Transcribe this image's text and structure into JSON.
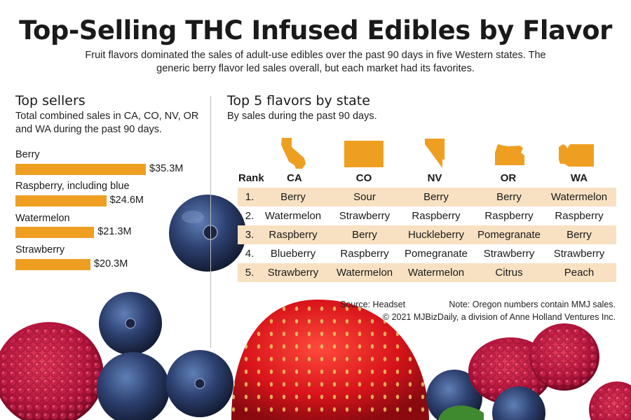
{
  "header": {
    "title": "Top-Selling THC Infused Edibles by Flavor",
    "subtitle_line1": "Fruit flavors dominated the sales of adult-use edibles over the past 90 days in five Western states. The",
    "subtitle_line2": "generic berry flavor led sales overall, but each market had its favorites."
  },
  "left_panel": {
    "heading": "Top sellers",
    "subheading_line1": "Total combined sales in CA, CO, NV, OR",
    "subheading_line2": "and WA during the past 90 days."
  },
  "right_panel": {
    "heading": "Top 5 flavors by state",
    "subheading": "By sales during the past 90 days."
  },
  "colors": {
    "bar": "#ee9f22",
    "shaded_row": "#f8e1c2",
    "state_shape": "#ee9f22"
  },
  "chart_data": [
    {
      "type": "bar",
      "orientation": "horizontal",
      "title": "Top sellers",
      "categories": [
        "Berry",
        "Raspberry, including blue",
        "Watermelon",
        "Strawberry"
      ],
      "values": [
        35.3,
        24.6,
        21.3,
        20.3
      ],
      "value_labels": [
        "$35.3M",
        "$24.6M",
        "$21.3M",
        "$20.3M"
      ],
      "unit": "$M"
    },
    {
      "type": "table",
      "title": "Top 5 flavors by state",
      "columns": [
        "Rank",
        "CA",
        "CO",
        "NV",
        "OR",
        "WA"
      ],
      "rows": [
        [
          "1.",
          "Berry",
          "Sour",
          "Berry",
          "Berry",
          "Watermelon"
        ],
        [
          "2.",
          "Watermelon",
          "Strawberry",
          "Raspberry",
          "Raspberry",
          "Raspberry"
        ],
        [
          "3.",
          "Raspberry",
          "Berry",
          "Huckleberry",
          "Pomegranate",
          "Berry"
        ],
        [
          "4.",
          "Blueberry",
          "Raspberry",
          "Pomegranate",
          "Strawberry",
          "Strawberry"
        ],
        [
          "5.",
          "Strawberry",
          "Watermelon",
          "Watermelon",
          "Citrus",
          "Peach"
        ]
      ]
    }
  ],
  "footer": {
    "source": "Source: Headset",
    "note": "Note: Oregon numbers contain MMJ sales.",
    "copyright": "© 2021 MJBizDaily, a division of Anne Holland Ventures Inc."
  }
}
